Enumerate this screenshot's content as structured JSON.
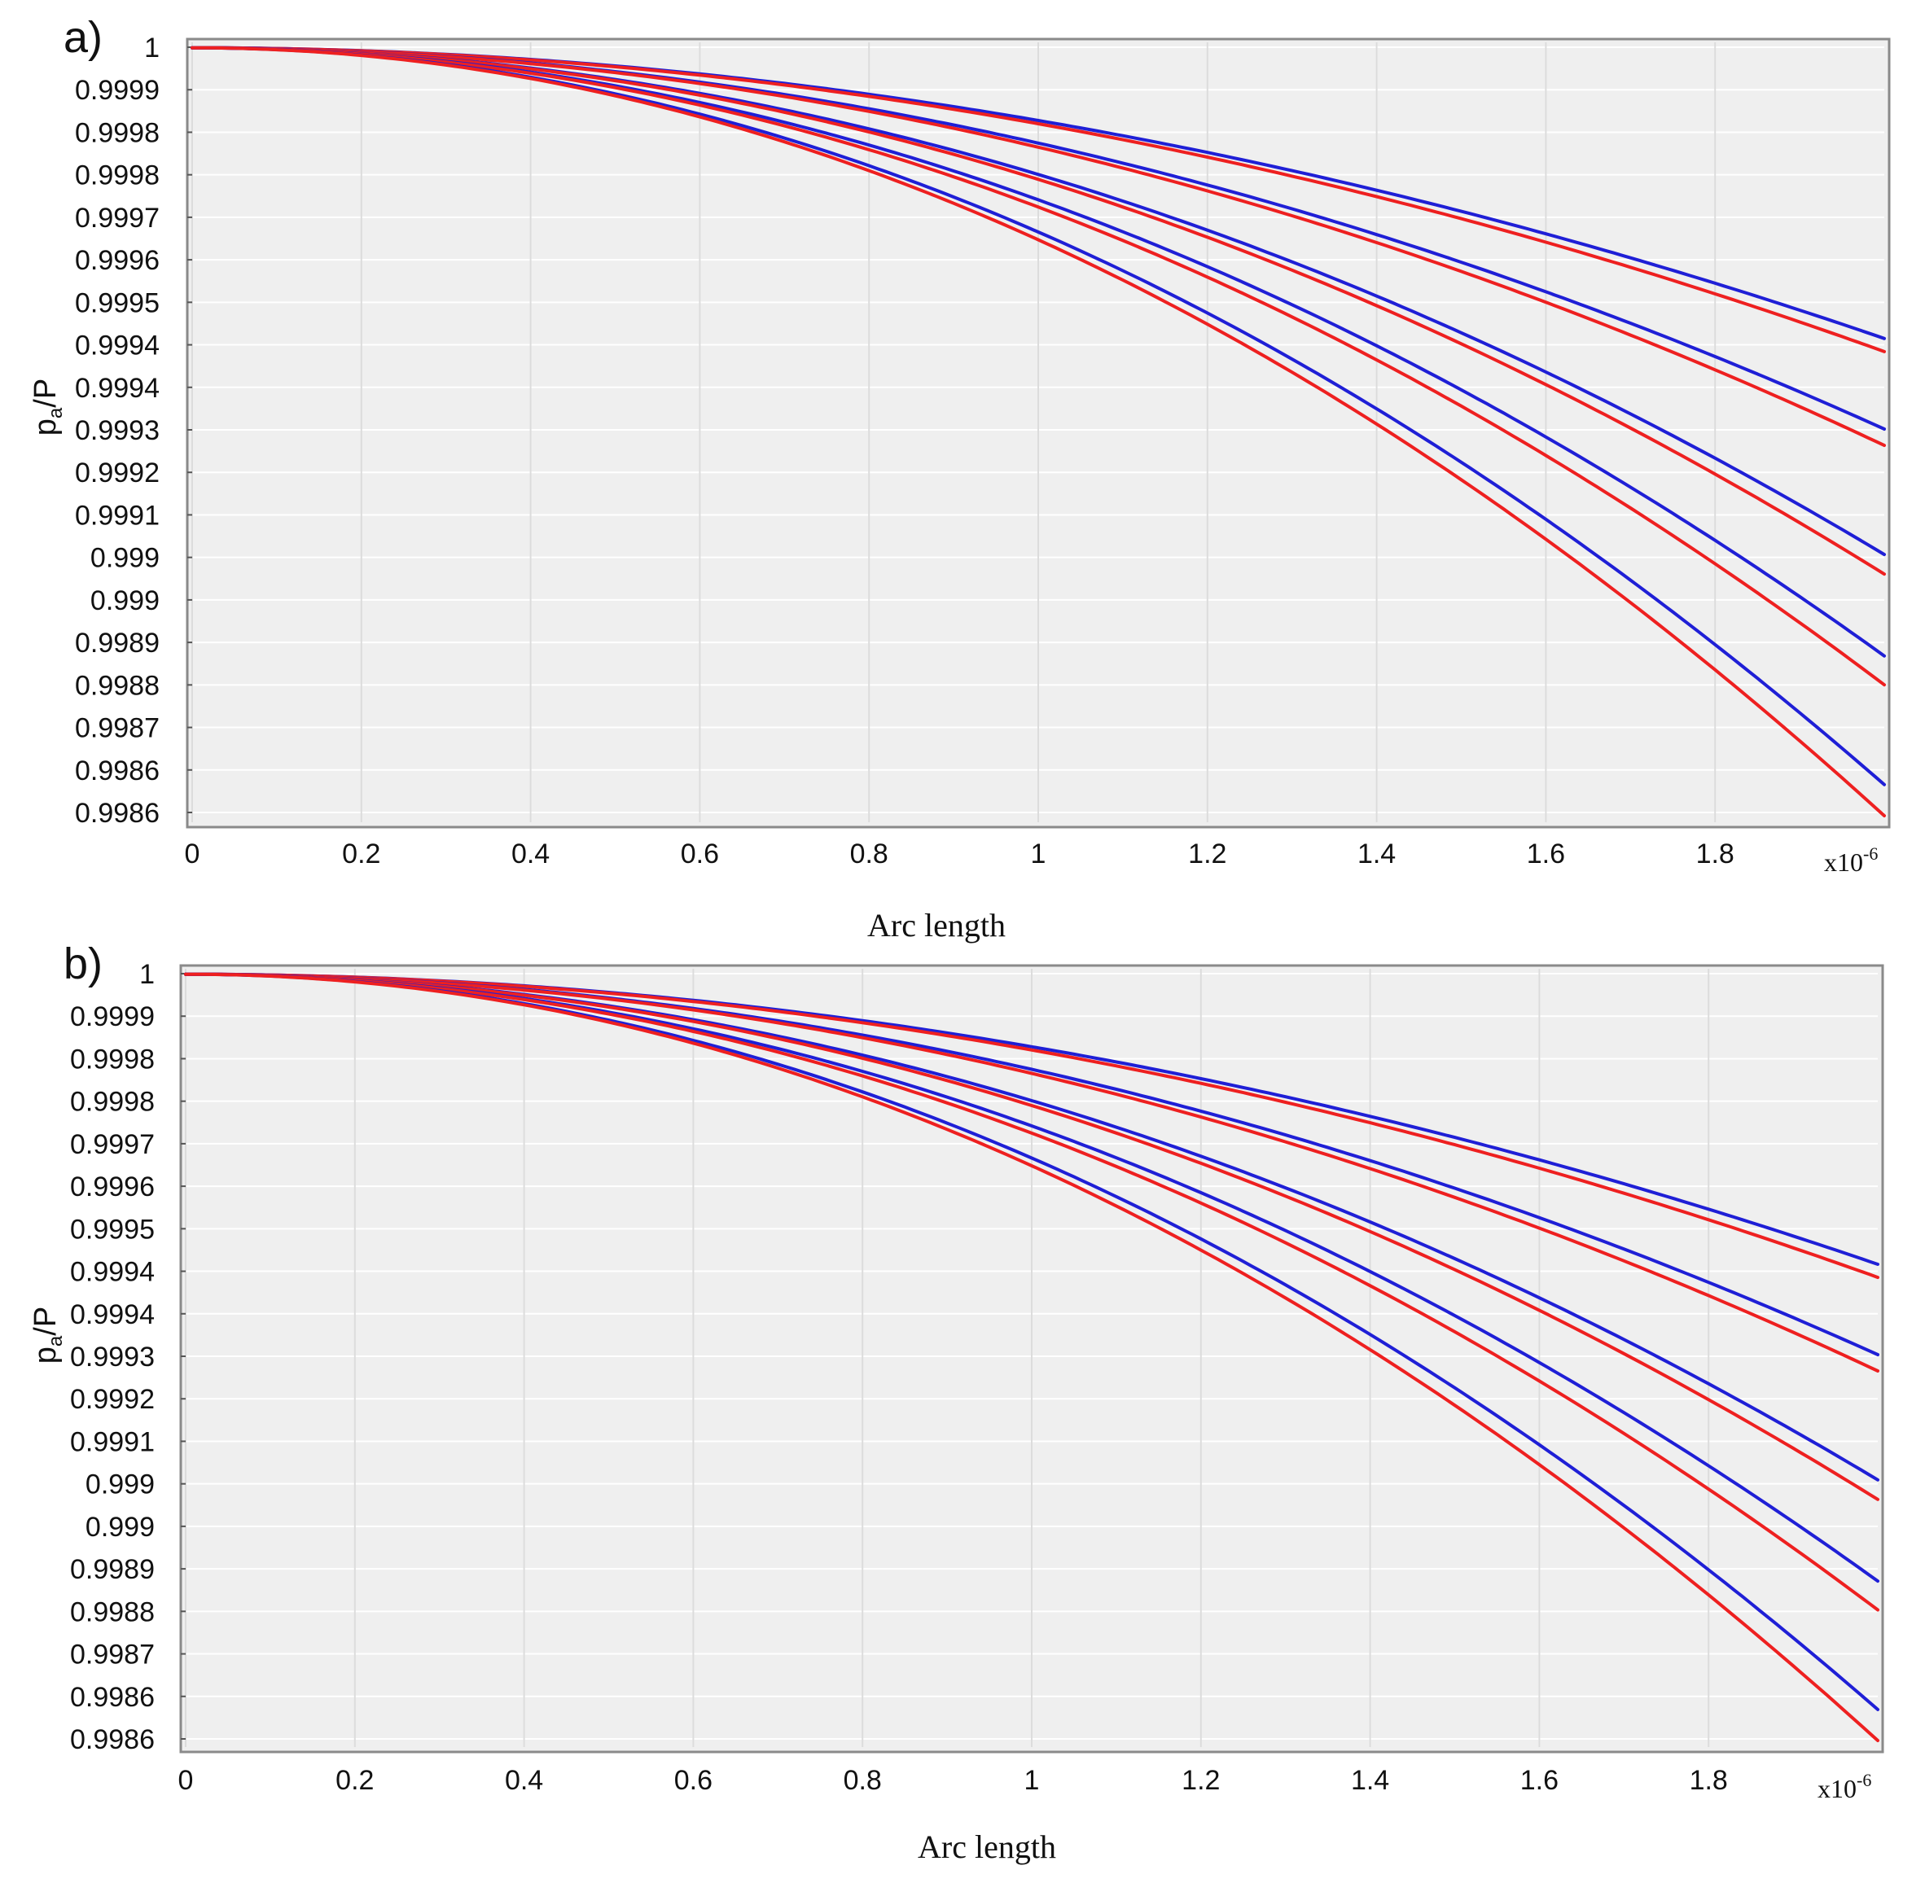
{
  "figure": {
    "colors": {
      "numerical": "#1f1fd6",
      "analytical": "#ee2020",
      "background": "#efefef",
      "grid": "#ffffff"
    }
  },
  "chart_data": [
    {
      "type": "line",
      "panel_label": "a)",
      "xlabel": "Arc length",
      "ylabel": "p",
      "ylabel_subscript": "a",
      "ylabel_suffix": "/P",
      "x_exponent_label": "x10",
      "x_exponent_power": "-6",
      "xlim": [
        0,
        2.0
      ],
      "ylim": [
        0.99858,
        1.00001
      ],
      "x_ticks": [
        0,
        0.2,
        0.4,
        0.6,
        0.8,
        1,
        1.2,
        1.4,
        1.6,
        1.8
      ],
      "x_tick_labels": [
        "0",
        "0.2",
        "0.4",
        "0.6",
        "0.8",
        "1",
        "1.2",
        "1.4",
        "1.6",
        "1.8"
      ],
      "y_tick_labels": [
        "1",
        "0.9999",
        "0.9998",
        "0.9998",
        "0.9997",
        "0.9996",
        "0.9995",
        "0.9994",
        "0.9994",
        "0.9993",
        "0.9992",
        "0.9991",
        "0.999",
        "0.999",
        "0.9989",
        "0.9988",
        "0.9987",
        "0.9986",
        "0.9986"
      ],
      "series": [
        {
          "name": "blue-1",
          "color": "#1f1fd6",
          "end_value": 0.999467
        },
        {
          "name": "red-1",
          "color": "#ee2020",
          "end_value": 0.999443
        },
        {
          "name": "blue-2",
          "color": "#1f1fd6",
          "end_value": 0.999301
        },
        {
          "name": "red-2",
          "color": "#ee2020",
          "end_value": 0.999271
        },
        {
          "name": "blue-3",
          "color": "#1f1fd6",
          "end_value": 0.999071
        },
        {
          "name": "red-3",
          "color": "#ee2020",
          "end_value": 0.999035
        },
        {
          "name": "blue-4",
          "color": "#1f1fd6",
          "end_value": 0.998885
        },
        {
          "name": "red-4",
          "color": "#ee2020",
          "end_value": 0.998832
        },
        {
          "name": "blue-5",
          "color": "#1f1fd6",
          "end_value": 0.998649
        },
        {
          "name": "red-5",
          "color": "#ee2020",
          "end_value": 0.998592
        }
      ]
    },
    {
      "type": "line",
      "panel_label": "b)",
      "xlabel": "Arc length",
      "ylabel": "p",
      "ylabel_subscript": "a",
      "ylabel_suffix": "/P",
      "x_exponent_label": "x10",
      "x_exponent_power": "-6",
      "xlim": [
        0,
        2.0
      ],
      "ylim": [
        0.99858,
        1.00001
      ],
      "x_ticks": [
        0,
        0.2,
        0.4,
        0.6,
        0.8,
        1,
        1.2,
        1.4,
        1.6,
        1.8
      ],
      "x_tick_labels": [
        "0",
        "0.2",
        "0.4",
        "0.6",
        "0.8",
        "1",
        "1.2",
        "1.4",
        "1.6",
        "1.8"
      ],
      "y_tick_labels": [
        "1",
        "0.9999",
        "0.9998",
        "0.9998",
        "0.9997",
        "0.9996",
        "0.9995",
        "0.9994",
        "0.9994",
        "0.9993",
        "0.9992",
        "0.9991",
        "0.999",
        "0.999",
        "0.9989",
        "0.9988",
        "0.9987",
        "0.9986",
        "0.9986"
      ],
      "series": [
        {
          "name": "blue-1",
          "color": "#1f1fd6",
          "end_value": 0.999467
        },
        {
          "name": "red-1",
          "color": "#ee2020",
          "end_value": 0.999443
        },
        {
          "name": "blue-2",
          "color": "#1f1fd6",
          "end_value": 0.999301
        },
        {
          "name": "red-2",
          "color": "#ee2020",
          "end_value": 0.999271
        },
        {
          "name": "blue-3",
          "color": "#1f1fd6",
          "end_value": 0.999071
        },
        {
          "name": "red-3",
          "color": "#ee2020",
          "end_value": 0.999035
        },
        {
          "name": "blue-4",
          "color": "#1f1fd6",
          "end_value": 0.998885
        },
        {
          "name": "red-4",
          "color": "#ee2020",
          "end_value": 0.998832
        },
        {
          "name": "blue-5",
          "color": "#1f1fd6",
          "end_value": 0.998649
        },
        {
          "name": "red-5",
          "color": "#ee2020",
          "end_value": 0.998592
        }
      ]
    }
  ]
}
